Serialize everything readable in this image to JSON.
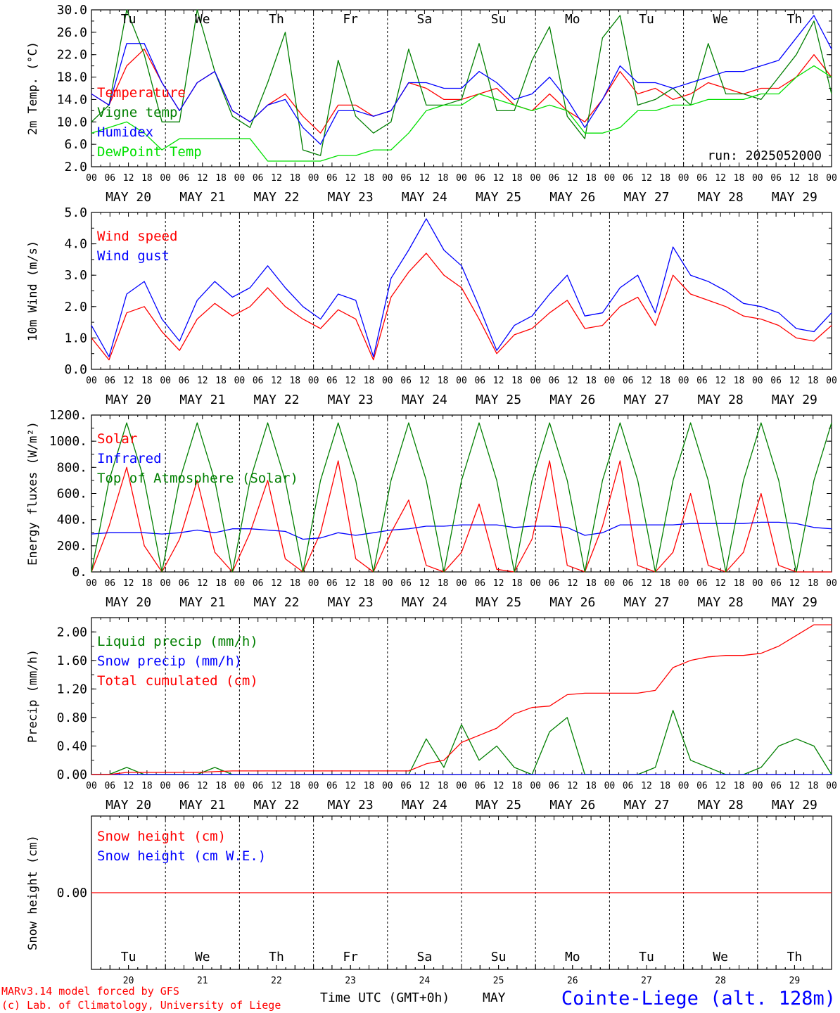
{
  "run_label": "run: 2025052000",
  "footer": {
    "credit1": "MARv3.14 model forced by GFS",
    "credit2": "(c) Lab. of Climatology, University of Liege",
    "xlabel": "Time UTC (GMT+0h)",
    "month": "MAY",
    "station": "Cointe-Liege (alt. 128m)"
  },
  "days": {
    "weekday": [
      "Tu",
      "We",
      "Th",
      "Fr",
      "Sa",
      "Su",
      "Mo",
      "Tu",
      "We",
      "Th"
    ],
    "weekend_flags": [
      false,
      false,
      false,
      false,
      true,
      true,
      false,
      false,
      false,
      false
    ],
    "date_labels": [
      "MAY 20",
      "MAY 21",
      "MAY 22",
      "MAY 23",
      "MAY 24",
      "MAY 25",
      "MAY 26",
      "MAY 27",
      "MAY 28",
      "MAY 29"
    ],
    "day_numbers": [
      "20",
      "21",
      "22",
      "23",
      "24",
      "25",
      "26",
      "27",
      "28",
      "29"
    ],
    "hour_ticks": [
      "00",
      "06",
      "12",
      "18"
    ],
    "final_tick": "00"
  },
  "colors": {
    "red": "#ff0000",
    "blue": "#0000ff",
    "green": "#007f00",
    "lightgreen": "#00e000",
    "weekend": "#ff0000"
  },
  "chart_data": [
    {
      "id": "temp",
      "type": "line",
      "ylabel": "2m Temp. (°C)",
      "ylim": [
        2,
        30
      ],
      "yticks": [
        "2.0",
        "6.0",
        "10.0",
        "14.0",
        "18.0",
        "22.0",
        "26.0",
        "30.0"
      ],
      "ytick_values": [
        2,
        6,
        10,
        14,
        18,
        22,
        26,
        30
      ],
      "x_hours_step": 6,
      "series": [
        {
          "name": "Temperature",
          "color": "red",
          "values": [
            15,
            13,
            20,
            23,
            17,
            12,
            17,
            19,
            12,
            10,
            13,
            15,
            11,
            8,
            13,
            13,
            11,
            12,
            17,
            16,
            14,
            14,
            15,
            16,
            13,
            12,
            15,
            12,
            10,
            14,
            19,
            15,
            16,
            14,
            15,
            17,
            16,
            15,
            16,
            16,
            18,
            22,
            18
          ]
        },
        {
          "name": "Vigne temp",
          "color": "green",
          "values": [
            10,
            13,
            30,
            22,
            10,
            10,
            30,
            19,
            11,
            9,
            17,
            26,
            5,
            4,
            21,
            11,
            8,
            10,
            23,
            13,
            13,
            14,
            24,
            12,
            12,
            21,
            27,
            11,
            7,
            25,
            29,
            13,
            14,
            16,
            13,
            24,
            15,
            15,
            14,
            18,
            22,
            28,
            15
          ]
        },
        {
          "name": "Humidex",
          "color": "blue",
          "values": [
            15,
            13,
            24,
            24,
            17,
            12,
            17,
            19,
            12,
            10,
            13,
            14,
            9,
            6,
            12,
            12,
            11,
            12,
            17,
            17,
            16,
            16,
            19,
            17,
            14,
            15,
            18,
            14,
            9,
            14,
            20,
            17,
            17,
            16,
            17,
            18,
            19,
            19,
            20,
            21,
            25,
            29,
            23
          ]
        },
        {
          "name": "DewPoint Temp",
          "color": "lightgreen",
          "values": [
            8,
            9,
            10,
            8,
            5,
            7,
            7,
            7,
            7,
            7,
            3,
            3,
            3,
            3,
            4,
            4,
            5,
            5,
            8,
            12,
            13,
            13,
            15,
            14,
            13,
            12,
            13,
            12,
            8,
            8,
            9,
            12,
            12,
            13,
            13,
            14,
            14,
            14,
            15,
            15,
            18,
            20,
            18
          ]
        }
      ],
      "annotation": "run"
    },
    {
      "id": "wind",
      "type": "line",
      "ylabel": "10m Wind (m/s)",
      "ylim": [
        0,
        5
      ],
      "yticks": [
        "0.0",
        "1.0",
        "2.0",
        "3.0",
        "4.0",
        "5.0"
      ],
      "ytick_values": [
        0,
        1,
        2,
        3,
        4,
        5
      ],
      "x_hours_step": 6,
      "series": [
        {
          "name": "Wind speed",
          "color": "red",
          "values": [
            1.0,
            0.3,
            1.8,
            2.0,
            1.2,
            0.6,
            1.6,
            2.1,
            1.7,
            2.0,
            2.6,
            2.0,
            1.6,
            1.3,
            1.9,
            1.6,
            0.3,
            2.3,
            3.1,
            3.7,
            3.0,
            2.6,
            1.6,
            0.5,
            1.1,
            1.3,
            1.8,
            2.2,
            1.3,
            1.4,
            2.0,
            2.3,
            1.4,
            3.0,
            2.4,
            2.2,
            2.0,
            1.7,
            1.6,
            1.4,
            1.0,
            0.9,
            1.4
          ]
        },
        {
          "name": "Wind gust",
          "color": "blue",
          "values": [
            1.4,
            0.4,
            2.4,
            2.8,
            1.6,
            0.9,
            2.2,
            2.8,
            2.3,
            2.6,
            3.3,
            2.6,
            2.0,
            1.6,
            2.4,
            2.2,
            0.4,
            2.9,
            3.8,
            4.8,
            3.8,
            3.3,
            2.0,
            0.6,
            1.4,
            1.7,
            2.4,
            3.0,
            1.7,
            1.8,
            2.6,
            3.0,
            1.8,
            3.9,
            3.0,
            2.8,
            2.5,
            2.1,
            2.0,
            1.8,
            1.3,
            1.2,
            1.8
          ]
        }
      ]
    },
    {
      "id": "energy",
      "type": "line",
      "ylabel": "Energy fluxes (W/m²)",
      "ylim": [
        0,
        1200
      ],
      "yticks": [
        "0.",
        "200.",
        "400.",
        "600.",
        "800.",
        "1000.",
        "1200."
      ],
      "ytick_values": [
        0,
        200,
        400,
        600,
        800,
        1000,
        1200
      ],
      "x_hours_step": 6,
      "series": [
        {
          "name": "Solar",
          "color": "red",
          "values": [
            0,
            350,
            800,
            200,
            0,
            250,
            700,
            150,
            0,
            300,
            700,
            100,
            0,
            300,
            850,
            100,
            0,
            300,
            550,
            50,
            0,
            150,
            520,
            20,
            0,
            250,
            850,
            50,
            0,
            350,
            850,
            50,
            0,
            150,
            600,
            50,
            0,
            150,
            600,
            50,
            0,
            0,
            0
          ]
        },
        {
          "name": "Infrared",
          "color": "blue",
          "values": [
            290,
            300,
            300,
            300,
            290,
            300,
            320,
            300,
            330,
            330,
            320,
            310,
            250,
            260,
            300,
            280,
            300,
            320,
            330,
            350,
            350,
            360,
            360,
            360,
            340,
            350,
            350,
            340,
            280,
            300,
            360,
            360,
            360,
            360,
            370,
            370,
            370,
            370,
            380,
            380,
            370,
            340,
            330
          ]
        },
        {
          "name": "Top of Atmosphere (Solar)",
          "color": "green",
          "values": [
            0,
            700,
            1140,
            700,
            0,
            700,
            1140,
            700,
            0,
            700,
            1140,
            700,
            0,
            700,
            1140,
            700,
            0,
            700,
            1140,
            700,
            0,
            700,
            1140,
            700,
            0,
            700,
            1140,
            700,
            0,
            700,
            1140,
            700,
            0,
            700,
            1140,
            700,
            0,
            700,
            1140,
            700,
            0,
            700,
            1140
          ]
        }
      ]
    },
    {
      "id": "precip",
      "type": "line",
      "ylabel": "Precip (mm/h)",
      "ylim": [
        0,
        2.2
      ],
      "yticks": [
        "0.00",
        "0.40",
        "0.80",
        "1.20",
        "1.60",
        "2.00"
      ],
      "ytick_values": [
        0,
        0.4,
        0.8,
        1.2,
        1.6,
        2.0
      ],
      "x_hours_step": 6,
      "series": [
        {
          "name": "Liquid precip (mm/h)",
          "color": "green",
          "values": [
            0,
            0,
            0.1,
            0,
            0,
            0,
            0,
            0.1,
            0,
            0,
            0,
            0,
            0,
            0,
            0,
            0,
            0,
            0,
            0,
            0.5,
            0.1,
            0.7,
            0.2,
            0.4,
            0.1,
            0,
            0.6,
            0.8,
            0,
            0,
            0,
            0,
            0.1,
            0.9,
            0.2,
            0.1,
            0,
            0,
            0.1,
            0.4,
            0.5,
            0.4,
            0
          ]
        },
        {
          "name": "Snow precip (mm/h)",
          "color": "blue",
          "values": [
            0,
            0,
            0,
            0,
            0,
            0,
            0,
            0,
            0,
            0,
            0,
            0,
            0,
            0,
            0,
            0,
            0,
            0,
            0,
            0,
            0,
            0,
            0,
            0,
            0,
            0,
            0,
            0,
            0,
            0,
            0,
            0,
            0,
            0,
            0,
            0,
            0,
            0,
            0,
            0,
            0,
            0,
            0
          ]
        },
        {
          "name": "Total cumulated (cm)",
          "color": "red",
          "values": [
            0,
            0,
            0.03,
            0.03,
            0.03,
            0.03,
            0.03,
            0.04,
            0.05,
            0.05,
            0.05,
            0.05,
            0.05,
            0.05,
            0.05,
            0.05,
            0.05,
            0.05,
            0.05,
            0.15,
            0.2,
            0.45,
            0.55,
            0.65,
            0.85,
            0.94,
            0.96,
            1.12,
            1.14,
            1.14,
            1.14,
            1.14,
            1.18,
            1.5,
            1.6,
            1.65,
            1.67,
            1.67,
            1.7,
            1.8,
            1.95,
            2.1,
            2.1
          ]
        }
      ]
    },
    {
      "id": "snow",
      "type": "line",
      "ylabel": "Snow height (cm)",
      "ylim": [
        -1,
        1
      ],
      "yticks": [
        "0.00"
      ],
      "ytick_values": [
        0
      ],
      "x_hours_step": 6,
      "series": [
        {
          "name": "Snow height (cm)",
          "color": "red",
          "values": [
            0,
            0,
            0,
            0,
            0,
            0,
            0,
            0,
            0,
            0,
            0,
            0,
            0,
            0,
            0,
            0,
            0,
            0,
            0,
            0,
            0,
            0,
            0,
            0,
            0,
            0,
            0,
            0,
            0,
            0,
            0,
            0,
            0,
            0,
            0,
            0,
            0,
            0,
            0,
            0,
            0,
            0,
            0
          ]
        },
        {
          "name": "Snow height (cm W.E.)",
          "color": "blue",
          "values": []
        }
      ]
    }
  ]
}
